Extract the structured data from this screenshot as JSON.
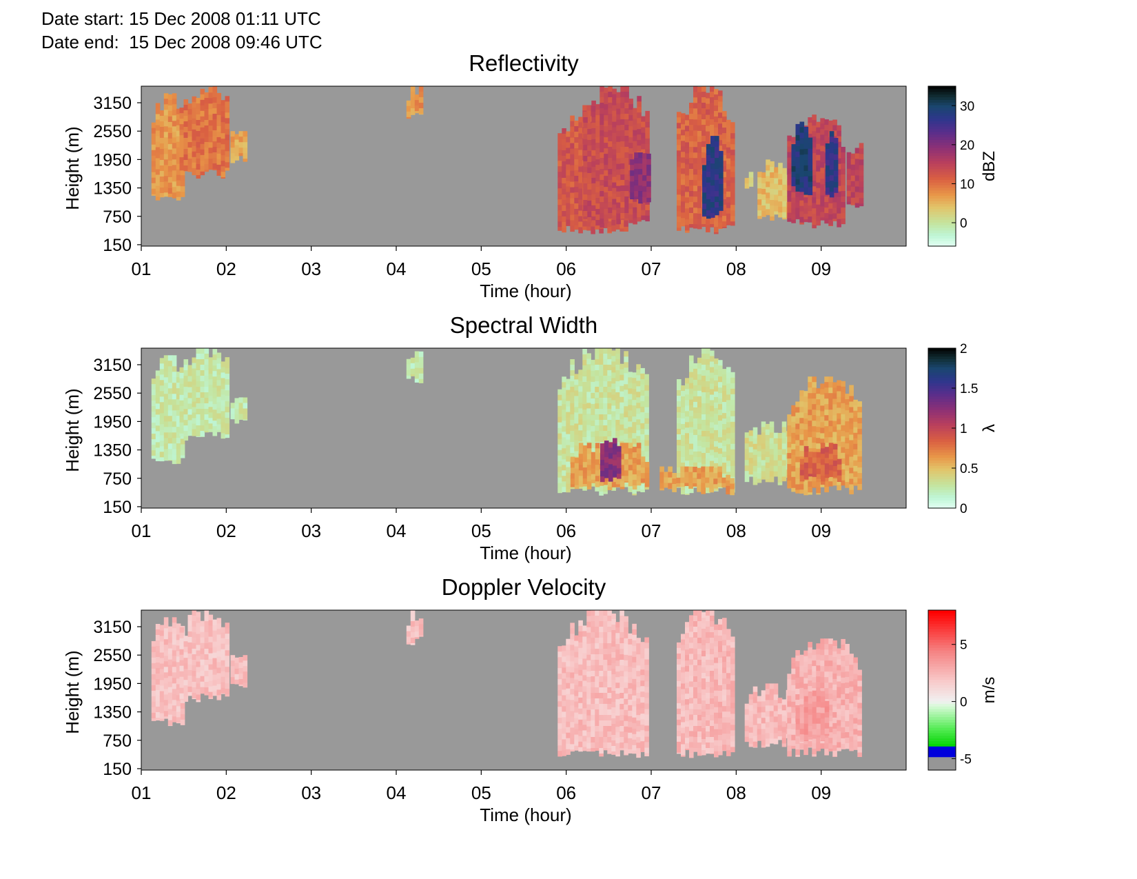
{
  "header": {
    "date_start_label": "Date start:",
    "date_start_value": "15 Dec 2008 01:11 UTC",
    "date_end_label": "Date end:",
    "date_end_value": "15 Dec 2008 09:46 UTC"
  },
  "colors": {
    "background_no_data": "#999999",
    "plot_border": "#000000"
  },
  "chart_data": [
    {
      "type": "heatmap",
      "title": "Reflectivity",
      "xlabel": "Time (hour)",
      "ylabel": "Height (m)",
      "x_ticks": [
        "01",
        "02",
        "03",
        "04",
        "05",
        "06",
        "07",
        "08",
        "09"
      ],
      "x_tick_values": [
        1,
        2,
        3,
        4,
        5,
        6,
        7,
        8,
        9
      ],
      "xlim": [
        1,
        10
      ],
      "y_ticks": [
        "150",
        "750",
        "1350",
        "1950",
        "2550",
        "3150"
      ],
      "y_tick_values": [
        150,
        750,
        1350,
        1950,
        2550,
        3150
      ],
      "ylim": [
        120,
        3500
      ],
      "colorbar": {
        "label": "dBZ",
        "ticks": [
          "0",
          "10",
          "20",
          "30"
        ],
        "tick_values": [
          0,
          10,
          20,
          30
        ],
        "range": [
          -6,
          35
        ],
        "colormap": "reflectivity"
      },
      "echo_regions": [
        {
          "t_start": 1.12,
          "t_end": 1.5,
          "h_bottom": 1150,
          "h_top": 3350,
          "level": 0.32
        },
        {
          "t_start": 1.45,
          "t_end": 2.02,
          "h_bottom": 1650,
          "h_top": 3500,
          "level": 0.38
        },
        {
          "t_start": 2.05,
          "t_end": 2.2,
          "h_bottom": 1950,
          "h_top": 2550,
          "level": 0.3
        },
        {
          "t_start": 4.12,
          "t_end": 4.3,
          "h_bottom": 2850,
          "h_top": 3500,
          "level": 0.32
        },
        {
          "t_start": 5.9,
          "t_end": 6.7,
          "h_bottom": 480,
          "h_top": 3100,
          "level": 0.45
        },
        {
          "t_start": 6.2,
          "t_end": 6.95,
          "h_bottom": 600,
          "h_top": 3500,
          "level": 0.48
        },
        {
          "t_start": 6.75,
          "t_end": 6.95,
          "h_bottom": 1100,
          "h_top": 2100,
          "level": 0.62
        },
        {
          "t_start": 7.3,
          "t_end": 7.95,
          "h_bottom": 480,
          "h_top": 3500,
          "level": 0.42
        },
        {
          "t_start": 7.6,
          "t_end": 7.8,
          "h_bottom": 800,
          "h_top": 2450,
          "level": 0.82
        },
        {
          "t_start": 8.1,
          "t_end": 8.18,
          "h_bottom": 1300,
          "h_top": 1900,
          "level": 0.2
        },
        {
          "t_start": 8.25,
          "t_end": 8.6,
          "h_bottom": 700,
          "h_top": 1950,
          "level": 0.25
        },
        {
          "t_start": 8.6,
          "t_end": 9.25,
          "h_bottom": 600,
          "h_top": 2900,
          "level": 0.5
        },
        {
          "t_start": 8.65,
          "t_end": 8.85,
          "h_bottom": 1300,
          "h_top": 2750,
          "level": 0.85
        },
        {
          "t_start": 9.05,
          "t_end": 9.15,
          "h_bottom": 1200,
          "h_top": 2550,
          "level": 0.8
        },
        {
          "t_start": 9.3,
          "t_end": 9.48,
          "h_bottom": 1000,
          "h_top": 2300,
          "level": 0.5
        }
      ]
    },
    {
      "type": "heatmap",
      "title": "Spectral Width",
      "xlabel": "Time (hour)",
      "ylabel": "Height (m)",
      "x_ticks": [
        "01",
        "02",
        "03",
        "04",
        "05",
        "06",
        "07",
        "08",
        "09"
      ],
      "x_tick_values": [
        1,
        2,
        3,
        4,
        5,
        6,
        7,
        8,
        9
      ],
      "xlim": [
        1,
        10
      ],
      "y_ticks": [
        "150",
        "750",
        "1350",
        "1950",
        "2550",
        "3150"
      ],
      "y_tick_values": [
        150,
        750,
        1350,
        1950,
        2550,
        3150
      ],
      "ylim": [
        120,
        3500
      ],
      "colorbar": {
        "label": "λ",
        "ticks": [
          "0",
          "0.5",
          "1",
          "1.5",
          "2"
        ],
        "tick_values": [
          0,
          0.5,
          1,
          1.5,
          2
        ],
        "range": [
          0,
          2
        ],
        "colormap": "reflectivity"
      },
      "echo_regions": [
        {
          "t_start": 1.12,
          "t_end": 1.5,
          "h_bottom": 1150,
          "h_top": 3350,
          "level": 0.12
        },
        {
          "t_start": 1.45,
          "t_end": 2.02,
          "h_bottom": 1650,
          "h_top": 3500,
          "level": 0.12
        },
        {
          "t_start": 2.05,
          "t_end": 2.2,
          "h_bottom": 1950,
          "h_top": 2550,
          "level": 0.12
        },
        {
          "t_start": 4.12,
          "t_end": 4.3,
          "h_bottom": 2850,
          "h_top": 3500,
          "level": 0.12
        },
        {
          "t_start": 5.9,
          "t_end": 6.95,
          "h_bottom": 480,
          "h_top": 3500,
          "level": 0.14
        },
        {
          "t_start": 6.05,
          "t_end": 6.95,
          "h_bottom": 600,
          "h_top": 1500,
          "level": 0.3
        },
        {
          "t_start": 6.4,
          "t_end": 6.62,
          "h_bottom": 700,
          "h_top": 1600,
          "level": 0.62
        },
        {
          "t_start": 7.3,
          "t_end": 7.95,
          "h_bottom": 480,
          "h_top": 3500,
          "level": 0.14
        },
        {
          "t_start": 7.1,
          "t_end": 7.95,
          "h_bottom": 500,
          "h_top": 1000,
          "level": 0.3
        },
        {
          "t_start": 8.1,
          "t_end": 8.6,
          "h_bottom": 700,
          "h_top": 1950,
          "level": 0.16
        },
        {
          "t_start": 8.6,
          "t_end": 9.45,
          "h_bottom": 500,
          "h_top": 2900,
          "level": 0.3
        },
        {
          "t_start": 8.75,
          "t_end": 9.2,
          "h_bottom": 700,
          "h_top": 1500,
          "level": 0.42
        }
      ]
    },
    {
      "type": "heatmap",
      "title": "Doppler Velocity",
      "xlabel": "Time (hour)",
      "ylabel": "Height (m)",
      "x_ticks": [
        "01",
        "02",
        "03",
        "04",
        "05",
        "06",
        "07",
        "08",
        "09"
      ],
      "x_tick_values": [
        1,
        2,
        3,
        4,
        5,
        6,
        7,
        8,
        9
      ],
      "xlim": [
        1,
        10
      ],
      "y_ticks": [
        "150",
        "750",
        "1350",
        "1950",
        "2550",
        "3150"
      ],
      "y_tick_values": [
        150,
        750,
        1350,
        1950,
        2550,
        3150
      ],
      "ylim": [
        120,
        3500
      ],
      "colorbar": {
        "label": "m/s",
        "ticks": [
          "-5",
          "0",
          "5"
        ],
        "tick_values": [
          -5,
          0,
          5
        ],
        "range": [
          -6,
          8
        ],
        "colormap": "velocity"
      },
      "echo_regions": [
        {
          "t_start": 1.12,
          "t_end": 1.5,
          "h_bottom": 1150,
          "h_top": 3350,
          "level": 0.58
        },
        {
          "t_start": 1.45,
          "t_end": 2.02,
          "h_bottom": 1650,
          "h_top": 3500,
          "level": 0.58
        },
        {
          "t_start": 2.05,
          "t_end": 2.2,
          "h_bottom": 1950,
          "h_top": 2550,
          "level": 0.58
        },
        {
          "t_start": 4.12,
          "t_end": 4.3,
          "h_bottom": 2850,
          "h_top": 3500,
          "level": 0.58
        },
        {
          "t_start": 5.9,
          "t_end": 6.95,
          "h_bottom": 480,
          "h_top": 3500,
          "level": 0.59
        },
        {
          "t_start": 7.3,
          "t_end": 7.95,
          "h_bottom": 480,
          "h_top": 3500,
          "level": 0.6
        },
        {
          "t_start": 8.1,
          "t_end": 8.6,
          "h_bottom": 700,
          "h_top": 1950,
          "level": 0.6
        },
        {
          "t_start": 8.6,
          "t_end": 9.45,
          "h_bottom": 500,
          "h_top": 2900,
          "level": 0.62
        },
        {
          "t_start": 8.7,
          "t_end": 9.05,
          "h_bottom": 800,
          "h_top": 1800,
          "level": 0.67
        }
      ]
    }
  ]
}
